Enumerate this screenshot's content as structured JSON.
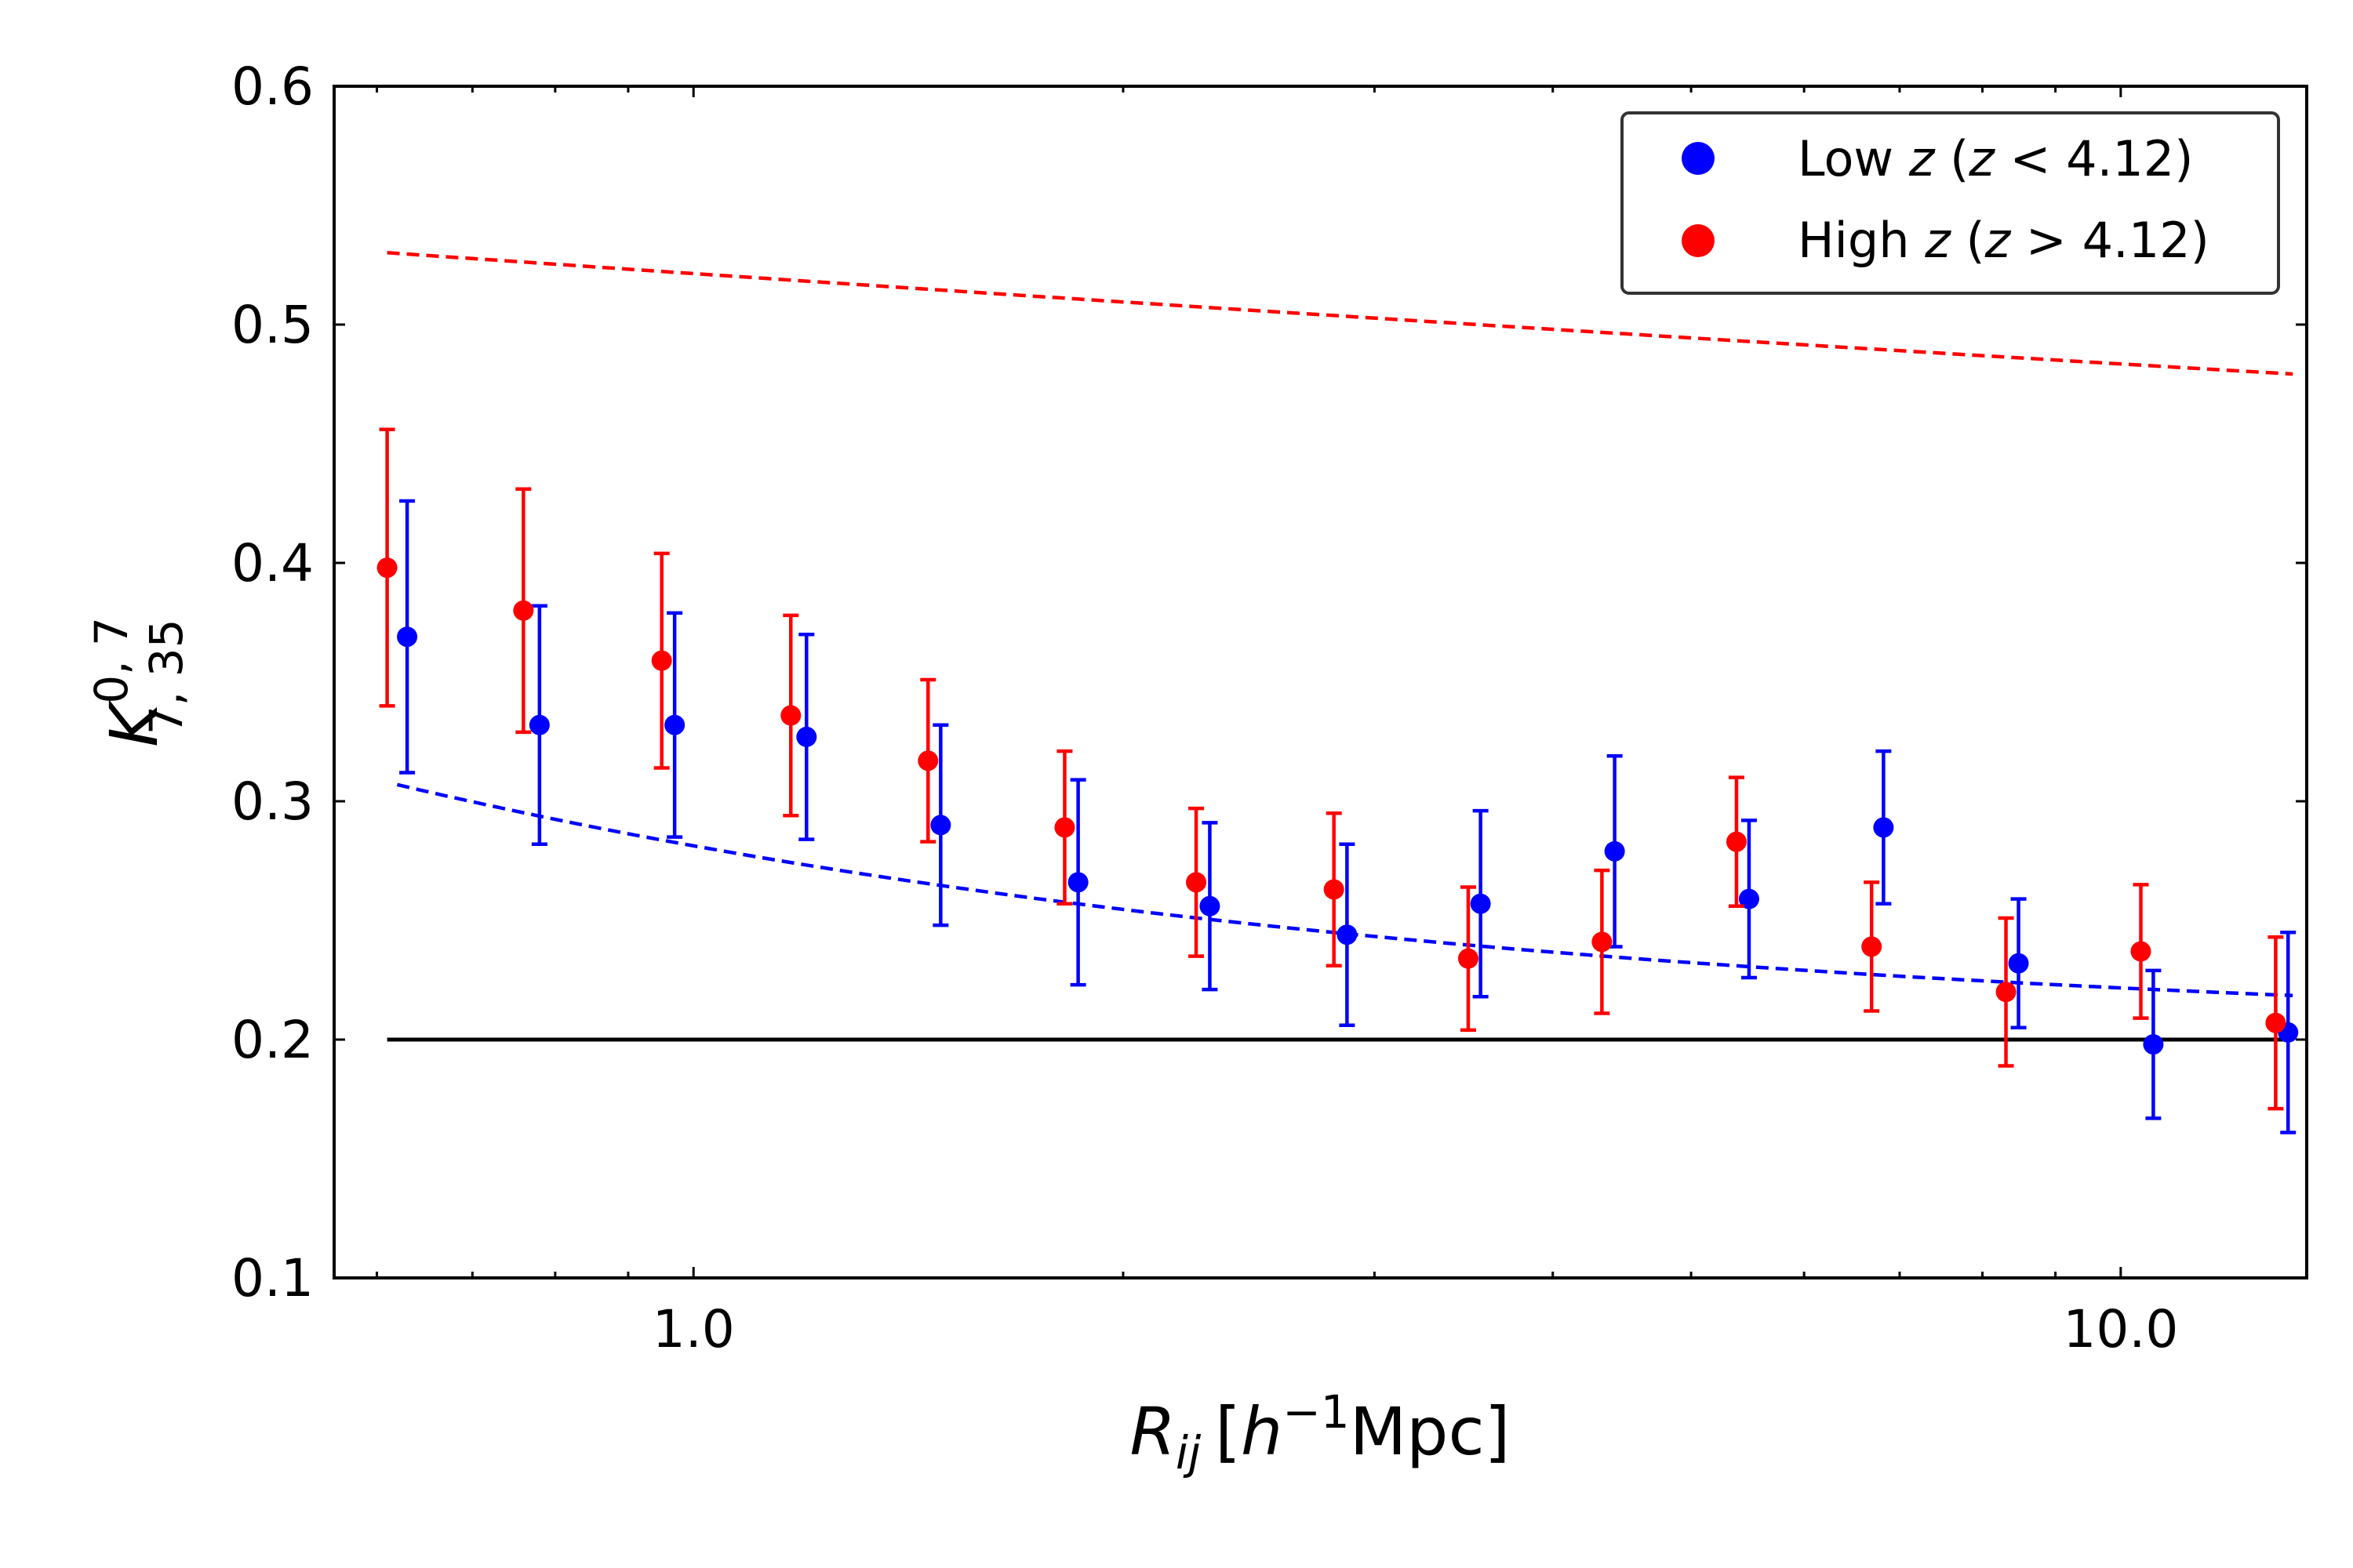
{
  "chart_data": {
    "type": "scatter",
    "title": "",
    "xscale": "log",
    "xlim": [
      0.56,
      13.5
    ],
    "ylim": [
      0.1,
      0.6
    ],
    "xlabel": {
      "main": "R",
      "sub": "ij",
      "bracket_open": "[",
      "h": "h",
      "exp": "−1",
      "unit": "Mpc]"
    },
    "ylabel": {
      "main": "K",
      "sup": "0, 7",
      "sub": "7, 35"
    },
    "x_tick_labels": [
      {
        "value": 1.0,
        "label": "1.0"
      },
      {
        "value": 10.0,
        "label": "10.0"
      }
    ],
    "y_tick_labels": [
      {
        "value": 0.1,
        "label": "0.1"
      },
      {
        "value": 0.2,
        "label": "0.2"
      },
      {
        "value": 0.3,
        "label": "0.3"
      },
      {
        "value": 0.4,
        "label": "0.4"
      },
      {
        "value": 0.5,
        "label": "0.5"
      },
      {
        "value": 0.6,
        "label": "0.6"
      }
    ],
    "reference_line": {
      "y": 0.2,
      "x_range": [
        0.61,
        13.2
      ],
      "color": "#000000"
    },
    "legend": {
      "placement": "top-right",
      "entries": [
        {
          "series": 0,
          "prefix": "Low ",
          "var": "z",
          "mid": " (",
          "var2": "z",
          "suffix": " < 4.12)"
        },
        {
          "series": 1,
          "prefix": "High ",
          "var": "z",
          "mid": " (",
          "var2": "z",
          "suffix": " > 4.12)"
        }
      ]
    },
    "series": [
      {
        "name": "Low z (z < 4.12)",
        "color": "#0000ff",
        "x": [
          0.63,
          0.78,
          0.97,
          1.2,
          1.49,
          1.86,
          2.3,
          2.87,
          3.56,
          4.42,
          5.49,
          6.82,
          8.48,
          10.54,
          13.1
        ],
        "y": [
          0.369,
          0.332,
          0.332,
          0.327,
          0.29,
          0.266,
          0.256,
          0.244,
          0.257,
          0.279,
          0.259,
          0.289,
          0.232,
          0.198,
          0.203
        ],
        "err": [
          0.057,
          0.05,
          0.047,
          0.043,
          0.042,
          0.043,
          0.035,
          0.038,
          0.039,
          0.04,
          0.033,
          0.032,
          0.027,
          0.031,
          0.042
        ],
        "fit_x": [
          0.62,
          13.2
        ],
        "fit": {
          "a": 0.0813,
          "b": -0.574,
          "c": 0.2
        }
      },
      {
        "name": "High z (z > 4.12)",
        "color": "#ff0000",
        "x": [
          0.61,
          0.76,
          0.95,
          1.17,
          1.46,
          1.82,
          2.25,
          2.81,
          3.49,
          4.33,
          5.38,
          6.69,
          8.31,
          10.33,
          12.84
        ],
        "y": [
          0.398,
          0.38,
          0.359,
          0.336,
          0.317,
          0.289,
          0.266,
          0.263,
          0.234,
          0.241,
          0.283,
          0.239,
          0.22,
          0.237,
          0.207
        ],
        "err": [
          0.058,
          0.051,
          0.045,
          0.042,
          0.034,
          0.032,
          0.031,
          0.032,
          0.03,
          0.03,
          0.027,
          0.027,
          0.031,
          0.028,
          0.036
        ],
        "fit_x": [
          0.61,
          13.2
        ],
        "fit": {
          "a": 0.3214,
          "b": -0.0545,
          "c": 0.2
        }
      }
    ]
  }
}
